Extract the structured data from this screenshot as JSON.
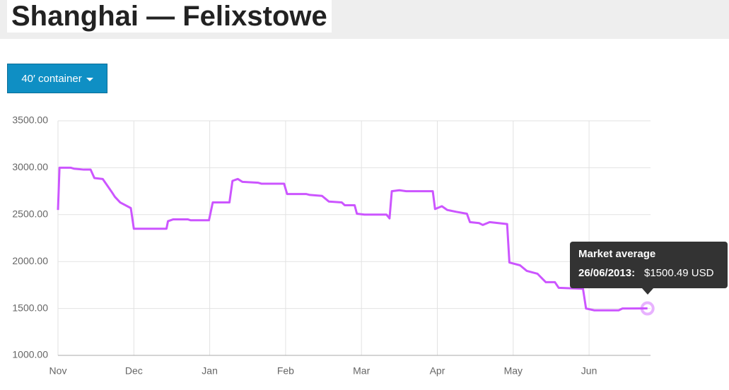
{
  "header": {
    "title": "Shanghai — Felixstowe"
  },
  "controls": {
    "dropdown": "40′ container"
  },
  "chart_data": {
    "type": "line",
    "x": [
      0,
      0.02,
      0.17,
      0.21,
      0.34,
      0.43,
      0.48,
      0.59,
      0.65,
      0.71,
      0.75,
      0.82,
      0.96,
      1.0,
      1.43,
      1.45,
      1.52,
      1.71,
      1.75,
      1.99,
      2.04,
      2.26,
      2.3,
      2.37,
      2.43,
      2.64,
      2.68,
      2.98,
      3.02,
      3.27,
      3.32,
      3.48,
      3.57,
      3.74,
      3.78,
      3.91,
      3.94,
      4.04,
      4.33,
      4.37,
      4.4,
      4.5,
      4.59,
      4.94,
      4.97,
      5.06,
      5.13,
      5.25,
      5.39,
      5.43,
      5.55,
      5.6,
      5.69,
      5.92,
      5.95,
      6.09,
      6.18,
      6.32,
      6.43,
      6.55,
      6.6,
      6.92,
      6.96,
      7.07,
      7.39,
      7.44,
      7.77
    ],
    "series": [
      {
        "name": "Market average",
        "color": "#cc55ff",
        "values": [
          2550,
          3000,
          3000,
          2990,
          2980,
          2980,
          2890,
          2880,
          2810,
          2740,
          2690,
          2630,
          2570,
          2350,
          2350,
          2430,
          2450,
          2450,
          2440,
          2440,
          2630,
          2630,
          2860,
          2880,
          2850,
          2840,
          2830,
          2830,
          2720,
          2720,
          2710,
          2700,
          2640,
          2630,
          2600,
          2600,
          2510,
          2500,
          2500,
          2460,
          2750,
          2760,
          2750,
          2750,
          2560,
          2590,
          2550,
          2530,
          2510,
          2420,
          2410,
          2390,
          2420,
          2400,
          1990,
          1960,
          1900,
          1870,
          1780,
          1780,
          1720,
          1710,
          1500,
          1480,
          1480,
          1500,
          1500.49
        ]
      }
    ],
    "xlim": [
      0,
      7.81
    ],
    "xticks": [
      {
        "value": 0,
        "label": "Nov"
      },
      {
        "value": 1,
        "label": "Dec"
      },
      {
        "value": 2,
        "label": "Jan"
      },
      {
        "value": 3,
        "label": "Feb"
      },
      {
        "value": 4,
        "label": "Mar"
      },
      {
        "value": 5,
        "label": "Apr"
      },
      {
        "value": 6,
        "label": "May"
      },
      {
        "value": 7,
        "label": "Jun"
      }
    ],
    "ylim": [
      1000,
      3500
    ],
    "yticks": [
      {
        "value": 1000,
        "label": "1000.00"
      },
      {
        "value": 1500,
        "label": "1500.00"
      },
      {
        "value": 2000,
        "label": "2000.00"
      },
      {
        "value": 2500,
        "label": "2500.00"
      },
      {
        "value": 3000,
        "label": "3000.00"
      },
      {
        "value": 3500,
        "label": "3500.00"
      }
    ],
    "grid": true,
    "tooltip": {
      "title": "Market average",
      "date": "26/06/2013:",
      "value": "$1500.49 USD"
    }
  }
}
